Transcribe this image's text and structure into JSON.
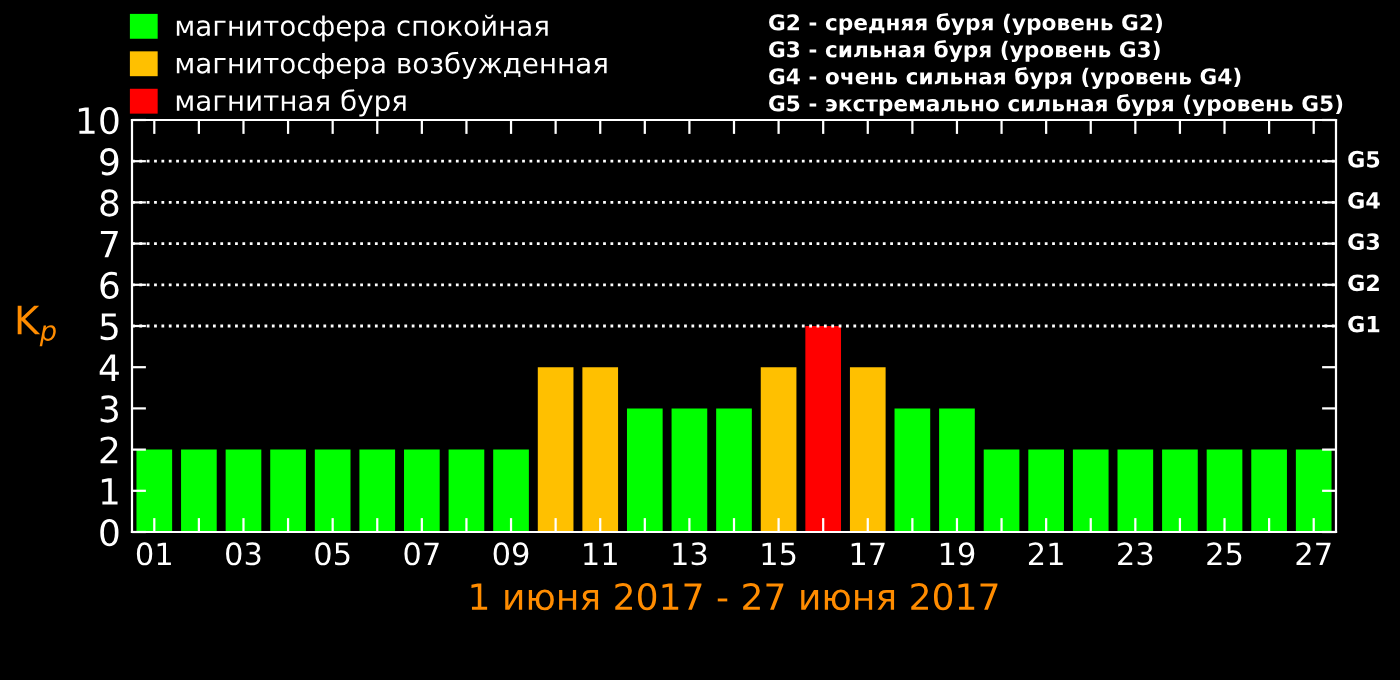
{
  "chart_data": {
    "type": "bar",
    "xlabel": "1 июня 2017 - 27 июня 2017",
    "ylabel": "K$_{p}$",
    "categories": [
      "01",
      null,
      "03",
      null,
      "05",
      null,
      "07",
      null,
      "09",
      null,
      "11",
      null,
      "13",
      null,
      "15",
      null,
      "17",
      null,
      "19",
      null,
      "21",
      null,
      "23",
      null,
      "25",
      null,
      "27"
    ],
    "series": [
      {
        "name": "магнитосфера спокойная",
        "color": "#00ff00",
        "values": [
          2,
          2,
          2,
          2,
          2,
          2,
          2,
          2,
          2,
          null,
          null,
          3,
          3,
          3,
          null,
          null,
          null,
          3,
          3,
          2,
          2,
          2,
          2,
          2,
          2,
          2,
          2
        ]
      },
      {
        "name": "магнитосфера возбужденная",
        "color": "#ffc000",
        "values": [
          null,
          null,
          null,
          null,
          null,
          null,
          null,
          null,
          null,
          4,
          4,
          null,
          null,
          null,
          4,
          null,
          4,
          null,
          null,
          null,
          null,
          null,
          null,
          null,
          null,
          null,
          null
        ]
      },
      {
        "name": "магнитная буря",
        "color": "#ff0000",
        "values": [
          null,
          null,
          null,
          null,
          null,
          null,
          null,
          null,
          null,
          null,
          null,
          null,
          null,
          null,
          null,
          5,
          null,
          null,
          null,
          null,
          null,
          null,
          null,
          null,
          null,
          null,
          null
        ]
      }
    ],
    "ylim": [
      0,
      10
    ],
    "yticks": [
      0,
      1,
      2,
      3,
      4,
      5,
      6,
      7,
      8,
      9,
      10
    ],
    "ref_lines": [
      {
        "axis": "y",
        "value": 5,
        "label": "G1",
        "color": "#ffffff",
        "line_style": "dotted"
      },
      {
        "axis": "y",
        "value": 6,
        "label": "G2",
        "color": "#ffffff",
        "line_style": "dotted"
      },
      {
        "axis": "y",
        "value": 7,
        "label": "G3",
        "color": "#ffffff",
        "line_style": "dotted"
      },
      {
        "axis": "y",
        "value": 8,
        "label": "G4",
        "color": "#ffffff",
        "line_style": "dotted"
      },
      {
        "axis": "y",
        "value": 9,
        "label": "G5",
        "color": "#ffffff",
        "line_style": "dotted"
      }
    ],
    "annotations": [
      "G2 - средняя буря (уровень G2)",
      "G3 - сильная буря (уровень G3)",
      "G4 - очень сильная буря (уровень G4)",
      "G5 - экстремально сильная буря (уровень G5)"
    ],
    "legend": "top left",
    "grid": false
  }
}
